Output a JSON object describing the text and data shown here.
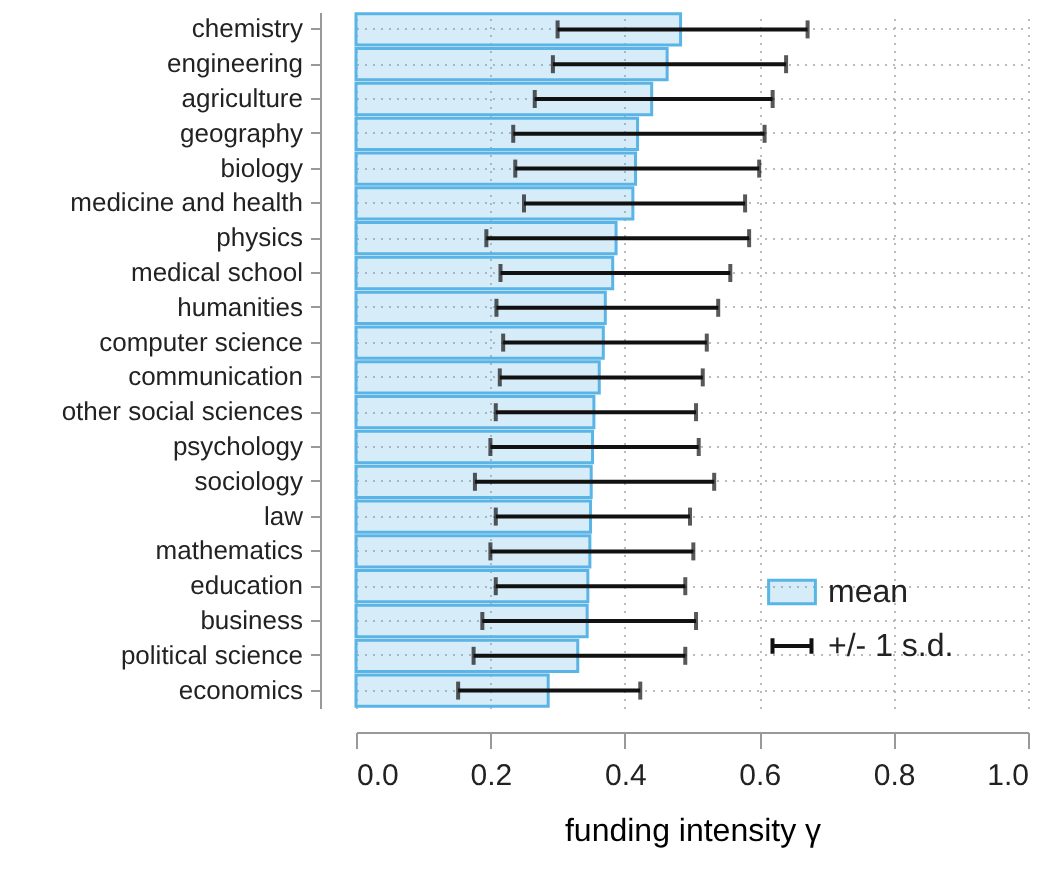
{
  "chart_data": {
    "type": "bar",
    "orientation": "horizontal",
    "xlabel": "funding intensity γ",
    "categories": [
      "chemistry",
      "engineering",
      "agriculture",
      "geography",
      "biology",
      "medicine and health",
      "physics",
      "medical school",
      "humanities",
      "computer science",
      "communication",
      "other social sciences",
      "psychology",
      "sociology",
      "law",
      "mathematics",
      "education",
      "business",
      "political science",
      "economics"
    ],
    "series": [
      {
        "name": "mean",
        "color": "#5ab4e5",
        "values": [
          0.483,
          0.463,
          0.44,
          0.419,
          0.416,
          0.412,
          0.387,
          0.382,
          0.371,
          0.368,
          0.362,
          0.354,
          0.352,
          0.35,
          0.349,
          0.348,
          0.345,
          0.344,
          0.33,
          0.286
        ],
        "errors": [
          [
            0.3,
            0.672
          ],
          [
            0.293,
            0.64
          ],
          [
            0.266,
            0.62
          ],
          [
            0.234,
            0.608
          ],
          [
            0.237,
            0.6
          ],
          [
            0.25,
            0.579
          ],
          [
            0.194,
            0.585
          ],
          [
            0.215,
            0.557
          ],
          [
            0.209,
            0.539
          ],
          [
            0.219,
            0.522
          ],
          [
            0.214,
            0.516
          ],
          [
            0.208,
            0.506
          ],
          [
            0.2,
            0.51
          ],
          [
            0.177,
            0.533
          ],
          [
            0.208,
            0.497
          ],
          [
            0.2,
            0.502
          ],
          [
            0.208,
            0.49
          ],
          [
            0.188,
            0.506
          ],
          [
            0.175,
            0.49
          ],
          [
            0.152,
            0.423
          ]
        ]
      }
    ],
    "annotations": [
      "+/- 1 s.d."
    ],
    "xlim": [
      0,
      1
    ],
    "xticks": [
      {
        "value": 0,
        "label": "0.0"
      },
      0.2,
      0.4,
      0.6,
      0.8,
      {
        "value": 1,
        "label": "1.0"
      }
    ],
    "grid": true,
    "legend": "bottom right"
  }
}
